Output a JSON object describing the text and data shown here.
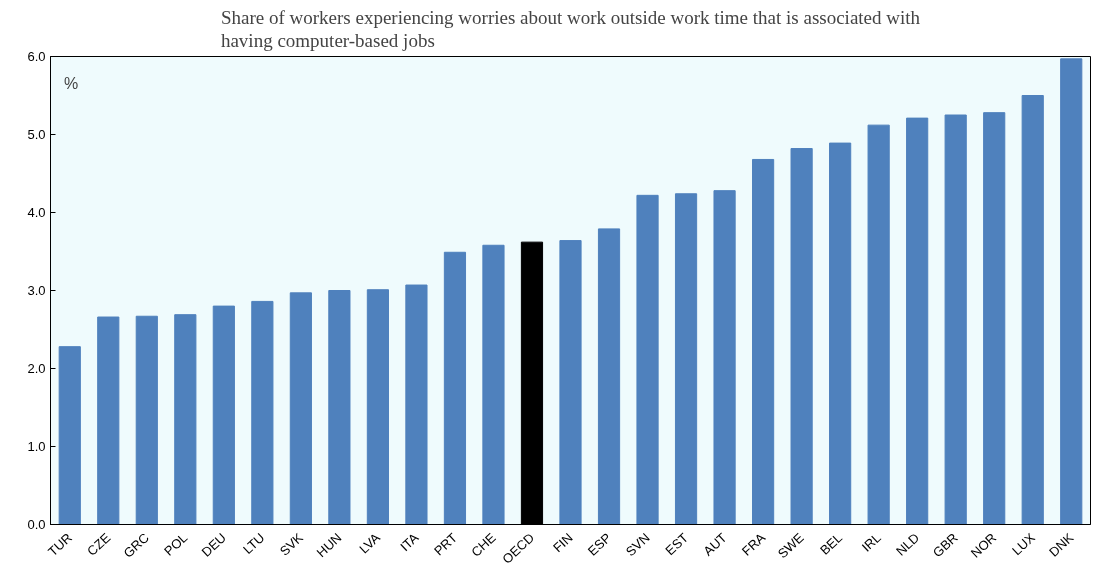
{
  "chart_data": {
    "type": "bar",
    "title": "Share of workers experiencing worries about work outside work time that is associated with having computer-based jobs",
    "categories": [
      "TUR",
      "CZE",
      "GRC",
      "POL",
      "DEU",
      "LTU",
      "SVK",
      "HUN",
      "LVA",
      "ITA",
      "PRT",
      "CHE",
      "OECD",
      "FIN",
      "ESP",
      "SVN",
      "EST",
      "AUT",
      "FRA",
      "SWE",
      "BEL",
      "IRL",
      "NLD",
      "GBR",
      "NOR",
      "LUX",
      "DNK"
    ],
    "values": [
      2.28,
      2.66,
      2.67,
      2.69,
      2.8,
      2.86,
      2.97,
      3.0,
      3.01,
      3.07,
      3.49,
      3.58,
      3.62,
      3.64,
      3.79,
      4.22,
      4.24,
      4.28,
      4.68,
      4.82,
      4.89,
      5.12,
      5.21,
      5.25,
      5.28,
      5.5,
      5.97
    ],
    "colors": [
      "#4f81bd",
      "#4f81bd",
      "#4f81bd",
      "#4f81bd",
      "#4f81bd",
      "#4f81bd",
      "#4f81bd",
      "#4f81bd",
      "#4f81bd",
      "#4f81bd",
      "#4f81bd",
      "#4f81bd",
      "#000000",
      "#4f81bd",
      "#4f81bd",
      "#4f81bd",
      "#4f81bd",
      "#4f81bd",
      "#4f81bd",
      "#4f81bd",
      "#4f81bd",
      "#4f81bd",
      "#4f81bd",
      "#4f81bd",
      "#4f81bd",
      "#4f81bd",
      "#4f81bd"
    ],
    "ylim": [
      0,
      6
    ],
    "yticks": [
      {
        "value": 0,
        "label": "0.0"
      },
      {
        "value": 1,
        "label": "1.0"
      },
      {
        "value": 2,
        "label": "2.0"
      },
      {
        "value": 3,
        "label": "3.0"
      },
      {
        "value": 4,
        "label": "4.0"
      },
      {
        "value": 5,
        "label": "5.0"
      },
      {
        "value": 6,
        "label": "6.0"
      }
    ],
    "annotations": [
      "%"
    ],
    "grid": false
  }
}
